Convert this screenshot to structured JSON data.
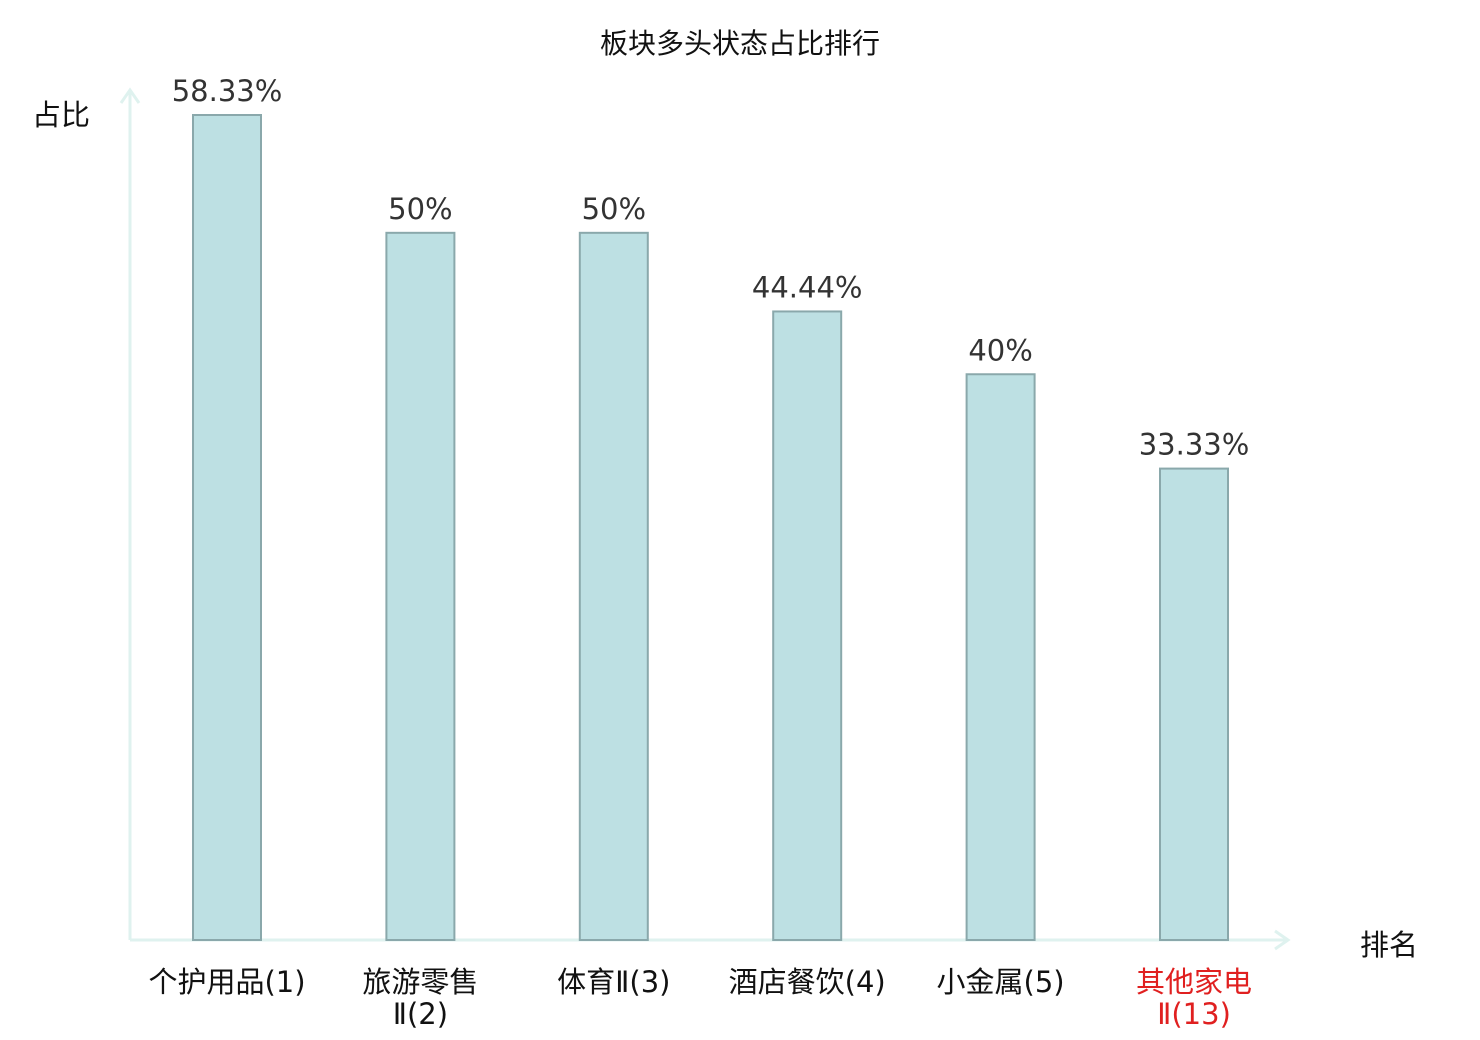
{
  "chart_data": {
    "type": "bar",
    "title": "板块多头状态占比排行",
    "ylabel": "占比",
    "xlabel": "排名",
    "categories": [
      {
        "line1": "个护用品(1)",
        "line2": "",
        "highlight": false
      },
      {
        "line1": "旅游零售",
        "line2": "Ⅱ(2)",
        "highlight": false
      },
      {
        "line1": "体育Ⅱ(3)",
        "line2": "",
        "highlight": false
      },
      {
        "line1": "酒店餐饮(4)",
        "line2": "",
        "highlight": false
      },
      {
        "line1": "小金属(5)",
        "line2": "",
        "highlight": false
      },
      {
        "line1": "其他家电",
        "line2": "Ⅱ(13)",
        "highlight": true
      }
    ],
    "values": [
      58.33,
      50,
      50,
      44.44,
      40,
      33.33
    ],
    "data_labels": [
      "58.33%",
      "50%",
      "50%",
      "44.44%",
      "40%",
      "33.33%"
    ],
    "ylim": [
      0,
      60
    ],
    "grid": false,
    "colors": {
      "bar_fill": "#bde0e3",
      "bar_stroke": "#8aa8ab",
      "axis": "#dff2ef",
      "highlight_text": "#e02020"
    }
  }
}
